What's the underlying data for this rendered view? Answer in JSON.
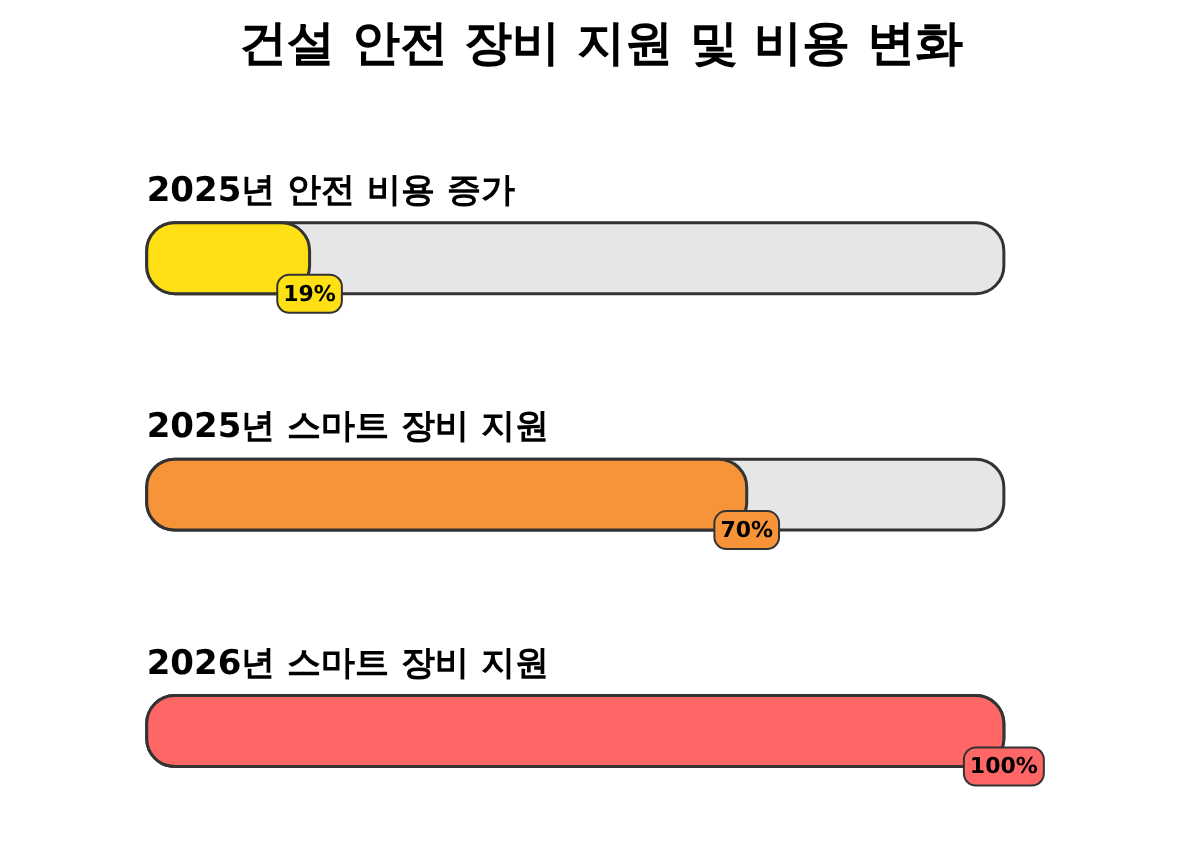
{
  "chart_data": {
    "type": "bar",
    "orientation": "horizontal",
    "title": "건설 안전 장비 지원 및 비용 변화",
    "categories": [
      "2025년 안전 비용 증가",
      "2025년 스마트 장비 지원",
      "2026년 스마트 장비 지원"
    ],
    "values": [
      19,
      70,
      100
    ],
    "colors": [
      "#ffe014",
      "#f7943a",
      "#ff6666"
    ],
    "value_labels": [
      "19%",
      "70%",
      "100%"
    ],
    "tick_labels": false,
    "grid": false
  }
}
